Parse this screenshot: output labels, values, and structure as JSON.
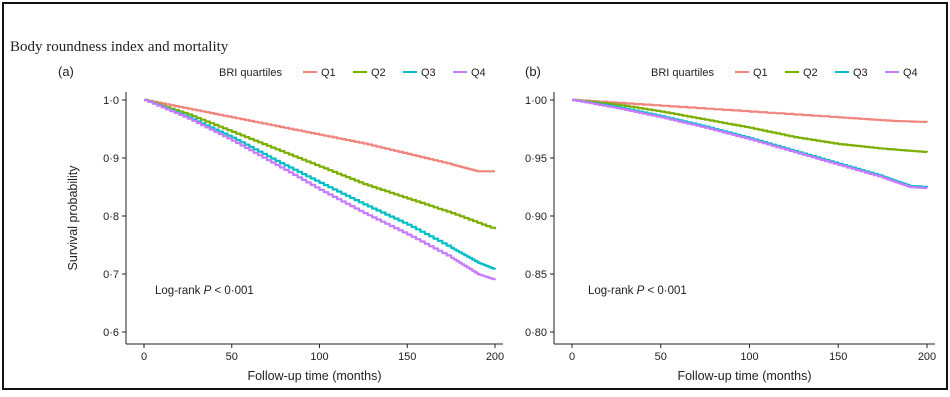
{
  "figure_title": "Body roundness index and mortality",
  "colors": {
    "Q1": "#f0857d",
    "Q2": "#7cae00",
    "Q3": "#00bfc4",
    "Q4": "#c77cff"
  },
  "chart_data": [
    {
      "type": "line",
      "panel": "(a)",
      "legend_title": "BRI quartiles",
      "legend_position": "top",
      "xlabel": "Follow-up time (months)",
      "ylabel": "Survival probability",
      "xlim": [
        0,
        200
      ],
      "ylim": [
        0.6,
        1.0
      ],
      "x_ticks": [
        0,
        50,
        100,
        150,
        200
      ],
      "y_ticks": [
        0.6,
        0.7,
        0.8,
        0.9,
        1.0
      ],
      "y_tick_labels": [
        "0·6",
        "0·7",
        "0·8",
        "0·9",
        "1·0"
      ],
      "annotation": {
        "prefix": "Log-rank ",
        "italic": "P",
        "suffix": " < 0·001"
      },
      "series": [
        {
          "name": "Q1",
          "x": [
            0,
            25,
            50,
            75,
            100,
            125,
            150,
            175,
            190,
            200
          ],
          "values": [
            1.0,
            0.985,
            0.97,
            0.955,
            0.94,
            0.925,
            0.907,
            0.889,
            0.877,
            0.877
          ]
        },
        {
          "name": "Q2",
          "x": [
            0,
            25,
            50,
            75,
            100,
            125,
            150,
            175,
            200
          ],
          "values": [
            1.0,
            0.975,
            0.945,
            0.915,
            0.885,
            0.855,
            0.83,
            0.805,
            0.777
          ]
        },
        {
          "name": "Q3",
          "x": [
            0,
            25,
            50,
            75,
            100,
            125,
            150,
            175,
            190,
            200
          ],
          "values": [
            1.0,
            0.97,
            0.935,
            0.895,
            0.857,
            0.82,
            0.785,
            0.745,
            0.72,
            0.708
          ]
        },
        {
          "name": "Q4",
          "x": [
            0,
            25,
            50,
            75,
            100,
            125,
            150,
            175,
            190,
            200
          ],
          "values": [
            1.0,
            0.968,
            0.93,
            0.888,
            0.845,
            0.805,
            0.768,
            0.728,
            0.7,
            0.69
          ]
        }
      ]
    },
    {
      "type": "line",
      "panel": "(b)",
      "legend_title": "BRI quartiles",
      "legend_position": "top",
      "xlabel": "Follow-up time (months)",
      "ylabel": "",
      "xlim": [
        0,
        200
      ],
      "ylim": [
        0.8,
        1.0
      ],
      "x_ticks": [
        0,
        50,
        100,
        150,
        200
      ],
      "y_ticks": [
        0.8,
        0.85,
        0.9,
        0.95,
        1.0
      ],
      "y_tick_labels": [
        "0·80",
        "0·85",
        "0·90",
        "0·95",
        "1·00"
      ],
      "annotation": {
        "prefix": "Log-rank ",
        "italic": "P",
        "suffix": " < 0·001"
      },
      "series": [
        {
          "name": "Q1",
          "x": [
            0,
            50,
            100,
            150,
            180,
            200
          ],
          "values": [
            1.0,
            0.995,
            0.99,
            0.985,
            0.982,
            0.981
          ]
        },
        {
          "name": "Q2",
          "x": [
            0,
            25,
            50,
            75,
            100,
            125,
            150,
            175,
            200
          ],
          "values": [
            1.0,
            0.996,
            0.99,
            0.983,
            0.976,
            0.968,
            0.962,
            0.958,
            0.955
          ]
        },
        {
          "name": "Q3",
          "x": [
            0,
            25,
            50,
            75,
            100,
            125,
            150,
            175,
            190,
            200
          ],
          "values": [
            1.0,
            0.994,
            0.986,
            0.977,
            0.967,
            0.956,
            0.945,
            0.934,
            0.926,
            0.925
          ]
        },
        {
          "name": "Q4",
          "x": [
            0,
            25,
            50,
            75,
            100,
            125,
            150,
            175,
            190,
            200
          ],
          "values": [
            1.0,
            0.993,
            0.985,
            0.976,
            0.966,
            0.955,
            0.944,
            0.933,
            0.925,
            0.924
          ]
        }
      ]
    }
  ]
}
